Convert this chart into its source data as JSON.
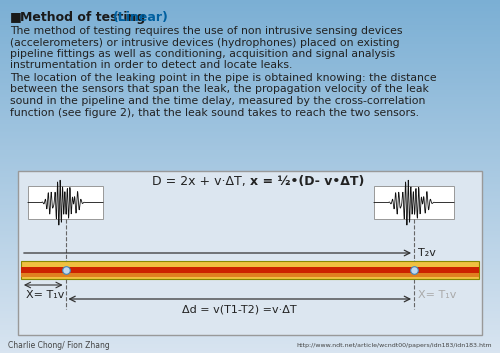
{
  "bg_top_color": "#7bafd4",
  "bg_bottom_color": "#d0dce8",
  "title_bullet": "■",
  "title_normal": "Method of testing ",
  "title_colored": "(Linear)",
  "para1_lines": [
    "The method of testing requires the use of non intrusive sensing devices",
    "(accelerometers) or intrusive devices (hydrophones) placed on existing",
    "pipeline fittings as well as conditioning, acquisition and signal analysis",
    "instrumentation in order to detect and locate leaks."
  ],
  "para2_lines": [
    "The location of the leaking point in the pipe is obtained knowing: the distance",
    "between the sensors that span the leak, the propagation velocity of the leak",
    "sound in the pipeline and the time delay, measured by the cross-correlation",
    "function (see figure 2), that the leak sound takes to reach the two sensors."
  ],
  "formula_normal": "D = 2x + v·ΔT, ",
  "formula_bold": "x = ½•(D- v•ΔT)",
  "label_T2v": "T₂v",
  "label_X_T1v_left": "X= T₁v",
  "label_X_T1v_right": "X= T₁v",
  "label_delta": "Δd = v(T1-T2) =v·ΔT",
  "footer_left": "Charlie Chong/ Fion Zhang",
  "footer_right": "http://www.ndt.net/article/wcndt00/papers/idn183/idn183.htm",
  "box_facecolor": "#dce6f0",
  "box_edgecolor": "#999999",
  "pipe_yellow": "#f0c040",
  "pipe_orange": "#e08020",
  "pipe_red": "#cc2200",
  "pipe_edge": "#888800",
  "sensor_box_color": "#e8e8e8",
  "waveform_color": "#111111",
  "arrow_color": "#333333",
  "dashed_color": "#666666",
  "text_color": "#222222",
  "title_color_normal": "#1a1a1a",
  "title_color_linear": "#0060a0",
  "faded_text": "#aaaaaa",
  "text_fontsize": 7.8,
  "title_fontsize": 9.0,
  "formula_fontsize": 9.0,
  "label_fontsize": 8.0,
  "footer_fontsize": 5.5
}
